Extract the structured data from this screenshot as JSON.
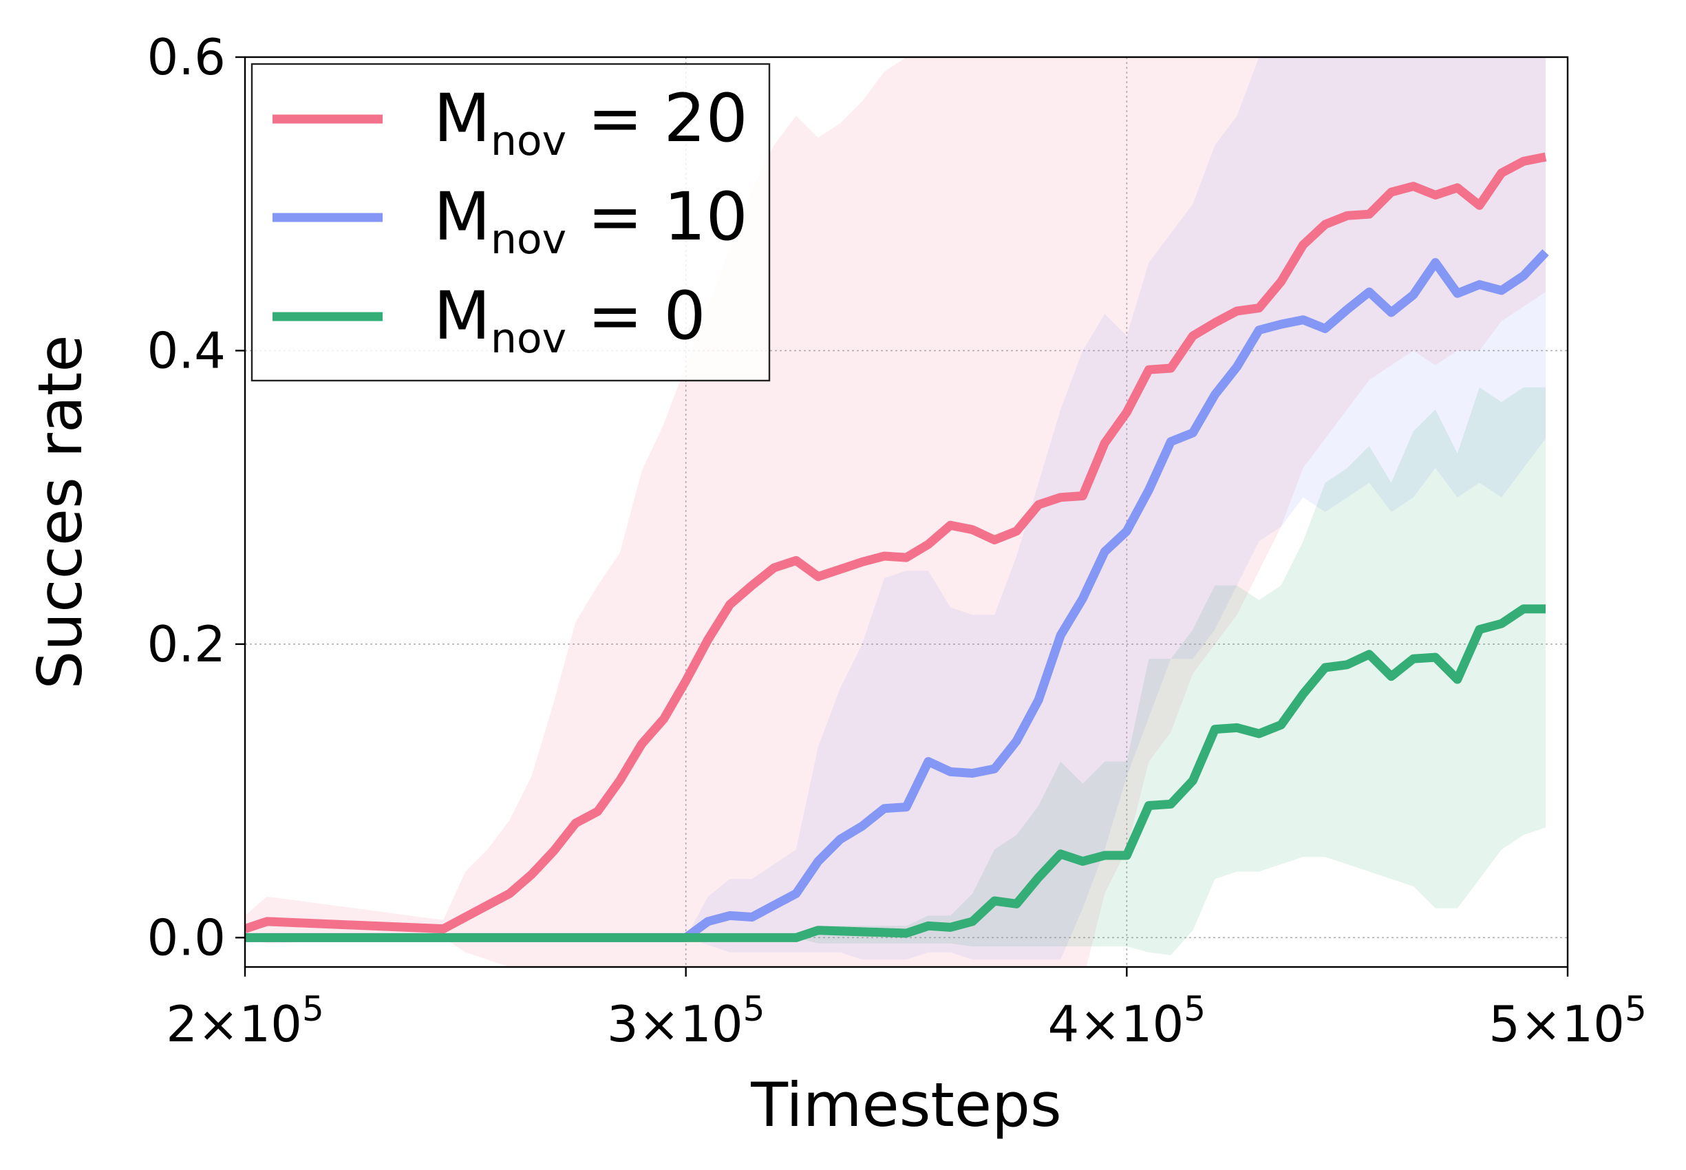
{
  "chart_data": {
    "type": "line",
    "title": "",
    "xlabel": "Timesteps",
    "ylabel": "Succes rate",
    "xlim": [
      200000,
      500000
    ],
    "ylim": [
      -0.02,
      0.6
    ],
    "grid": true,
    "legend_placement": "top-left",
    "x_ticks": [
      {
        "value": 200000,
        "base": "2×10",
        "exp": "5"
      },
      {
        "value": 300000,
        "base": "3×10",
        "exp": "5"
      },
      {
        "value": 400000,
        "base": "4×10",
        "exp": "5"
      },
      {
        "value": 500000,
        "base": "5×10",
        "exp": "5"
      }
    ],
    "y_ticks": [
      {
        "value": 0.0,
        "label": "0.0"
      },
      {
        "value": 0.2,
        "label": "0.2"
      },
      {
        "value": 0.4,
        "label": "0.4"
      },
      {
        "value": 0.6,
        "label": "0.6"
      }
    ],
    "series": [
      {
        "name": "M_nov = 20",
        "legend_main": "M",
        "legend_sub": "nov",
        "legend_value": " = 20",
        "color": "#f4718b",
        "x": [
          200000,
          205000,
          245000,
          250000,
          255000,
          260000,
          265000,
          270000,
          275000,
          280000,
          285000,
          290000,
          295000,
          300000,
          305000,
          310000,
          315000,
          320000,
          325000,
          330000,
          335000,
          340000,
          345000,
          350000,
          355000,
          360000,
          365000,
          370000,
          375000,
          380000,
          385000,
          390000,
          395000,
          400000,
          405000,
          410000,
          415000,
          420000,
          425000,
          430000,
          435000,
          440000,
          445000,
          450000,
          455000,
          460000,
          465000,
          470000,
          475000,
          480000,
          485000,
          490000,
          495000
        ],
        "y": [
          0.006,
          0.011,
          0.006,
          0.014,
          0.022,
          0.03,
          0.043,
          0.059,
          0.078,
          0.086,
          0.107,
          0.132,
          0.149,
          0.175,
          0.203,
          0.227,
          0.24,
          0.252,
          0.257,
          0.246,
          0.251,
          0.256,
          0.26,
          0.259,
          0.268,
          0.281,
          0.278,
          0.271,
          0.277,
          0.295,
          0.3,
          0.301,
          0.337,
          0.358,
          0.387,
          0.388,
          0.41,
          0.419,
          0.427,
          0.429,
          0.447,
          0.472,
          0.486,
          0.492,
          0.493,
          0.508,
          0.512,
          0.506,
          0.511,
          0.499,
          0.521,
          0.529,
          0.532
        ],
        "upper": [
          0.015,
          0.028,
          0.012,
          0.045,
          0.06,
          0.08,
          0.11,
          0.16,
          0.215,
          0.24,
          0.262,
          0.318,
          0.35,
          0.39,
          0.43,
          0.47,
          0.51,
          0.54,
          0.56,
          0.545,
          0.555,
          0.57,
          0.59,
          0.6,
          0.6,
          0.6,
          0.6,
          0.6,
          0.6,
          0.6,
          0.6,
          0.6,
          0.6,
          0.6,
          0.6,
          0.6,
          0.6,
          0.6,
          0.6,
          0.6,
          0.6,
          0.6,
          0.6,
          0.6,
          0.6,
          0.6,
          0.6,
          0.6,
          0.6,
          0.6,
          0.6,
          0.6,
          0.6
        ],
        "lower": [
          0.0,
          -0.004,
          0.0,
          -0.01,
          -0.015,
          -0.02,
          -0.025,
          -0.025,
          -0.03,
          -0.03,
          -0.03,
          -0.03,
          -0.03,
          -0.03,
          -0.03,
          -0.03,
          -0.03,
          -0.03,
          -0.03,
          -0.03,
          -0.03,
          -0.03,
          -0.03,
          -0.03,
          -0.03,
          -0.03,
          -0.03,
          -0.03,
          -0.03,
          -0.03,
          -0.03,
          -0.03,
          0.03,
          0.06,
          0.12,
          0.14,
          0.18,
          0.2,
          0.22,
          0.25,
          0.28,
          0.32,
          0.34,
          0.36,
          0.38,
          0.39,
          0.4,
          0.39,
          0.4,
          0.4,
          0.42,
          0.43,
          0.44
        ]
      },
      {
        "name": "M_nov = 10",
        "legend_main": "M",
        "legend_sub": "nov",
        "legend_value": " = 10",
        "color": "#8497f5",
        "x": [
          200000,
          300000,
          305000,
          310000,
          315000,
          320000,
          325000,
          330000,
          335000,
          340000,
          345000,
          350000,
          355000,
          360000,
          365000,
          370000,
          375000,
          380000,
          385000,
          390000,
          395000,
          400000,
          405000,
          410000,
          415000,
          420000,
          425000,
          430000,
          435000,
          440000,
          445000,
          450000,
          455000,
          460000,
          465000,
          470000,
          475000,
          480000,
          485000,
          490000,
          495000
        ],
        "y": [
          0.0,
          0.0,
          0.011,
          0.015,
          0.014,
          0.022,
          0.03,
          0.052,
          0.067,
          0.076,
          0.088,
          0.089,
          0.12,
          0.113,
          0.112,
          0.115,
          0.134,
          0.162,
          0.206,
          0.231,
          0.263,
          0.277,
          0.305,
          0.338,
          0.344,
          0.37,
          0.389,
          0.414,
          0.418,
          0.421,
          0.415,
          0.428,
          0.44,
          0.426,
          0.438,
          0.46,
          0.439,
          0.445,
          0.441,
          0.451,
          0.467
        ],
        "upper": [
          0.0,
          0.0,
          0.028,
          0.04,
          0.04,
          0.05,
          0.06,
          0.13,
          0.17,
          0.2,
          0.245,
          0.25,
          0.25,
          0.225,
          0.22,
          0.22,
          0.26,
          0.31,
          0.36,
          0.4,
          0.425,
          0.41,
          0.46,
          0.48,
          0.5,
          0.54,
          0.56,
          0.6,
          0.6,
          0.6,
          0.6,
          0.6,
          0.6,
          0.6,
          0.6,
          0.6,
          0.6,
          0.6,
          0.6,
          0.6,
          0.6
        ],
        "lower": [
          0.0,
          0.0,
          -0.005,
          -0.01,
          -0.01,
          -0.01,
          -0.01,
          -0.01,
          -0.01,
          -0.015,
          -0.015,
          -0.015,
          -0.01,
          -0.01,
          -0.015,
          -0.015,
          -0.015,
          -0.015,
          -0.015,
          0.02,
          0.06,
          0.11,
          0.15,
          0.19,
          0.19,
          0.21,
          0.24,
          0.27,
          0.28,
          0.3,
          0.29,
          0.3,
          0.31,
          0.29,
          0.3,
          0.32,
          0.3,
          0.31,
          0.3,
          0.32,
          0.34
        ]
      },
      {
        "name": "M_nov = 0",
        "legend_main": "M",
        "legend_sub": "nov",
        "legend_value": " = 0",
        "color": "#35ad76",
        "x": [
          200000,
          325000,
          330000,
          350000,
          355000,
          360000,
          365000,
          370000,
          375000,
          380000,
          385000,
          390000,
          395000,
          400000,
          405000,
          410000,
          415000,
          420000,
          425000,
          430000,
          435000,
          440000,
          445000,
          450000,
          455000,
          460000,
          465000,
          470000,
          475000,
          480000,
          485000,
          490000,
          495000
        ],
        "y": [
          0.0,
          0.0,
          0.005,
          0.003,
          0.008,
          0.007,
          0.011,
          0.025,
          0.023,
          0.041,
          0.057,
          0.052,
          0.056,
          0.056,
          0.09,
          0.091,
          0.107,
          0.142,
          0.143,
          0.139,
          0.145,
          0.166,
          0.184,
          0.186,
          0.193,
          0.178,
          0.19,
          0.191,
          0.176,
          0.21,
          0.214,
          0.224,
          0.224
        ],
        "upper": [
          0.0,
          0.0,
          0.008,
          0.008,
          0.015,
          0.015,
          0.03,
          0.06,
          0.07,
          0.09,
          0.12,
          0.105,
          0.12,
          0.12,
          0.19,
          0.19,
          0.21,
          0.24,
          0.24,
          0.23,
          0.24,
          0.27,
          0.31,
          0.32,
          0.335,
          0.31,
          0.345,
          0.36,
          0.33,
          0.375,
          0.365,
          0.375,
          0.375
        ],
        "lower": [
          0.0,
          0.0,
          -0.004,
          -0.004,
          -0.004,
          -0.004,
          -0.006,
          -0.006,
          -0.006,
          -0.006,
          -0.006,
          -0.006,
          -0.006,
          -0.006,
          -0.01,
          -0.012,
          0.005,
          0.04,
          0.045,
          0.045,
          0.05,
          0.055,
          0.055,
          0.05,
          0.045,
          0.04,
          0.035,
          0.02,
          0.02,
          0.04,
          0.06,
          0.07,
          0.075
        ]
      }
    ]
  }
}
